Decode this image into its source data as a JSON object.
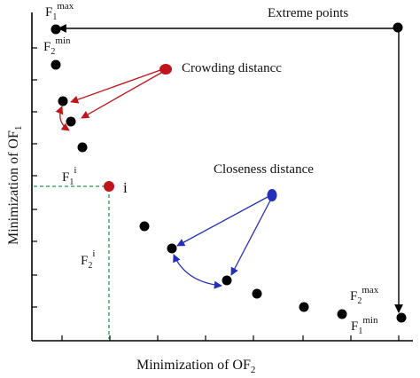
{
  "labels": {
    "f1_max": "F",
    "f1_max_sub": "1",
    "f1_max_sup": "max",
    "f2_min": "F",
    "f2_min_sub": "2",
    "f2_min_sup": "min",
    "f1_i": "F",
    "f1_i_sub": "1",
    "f1_i_sup": "i",
    "f2_i": "F",
    "f2_i_sub": "2",
    "f2_i_sup": "i",
    "i_label": "i",
    "f2_max": "F",
    "f2_max_sub": "2",
    "f2_max_sup": "max",
    "f1_min": "F",
    "f1_min_sub": "1",
    "f1_min_sup": "min",
    "extreme_points": "Extreme points",
    "crowding_distance": "Crowding distancc",
    "closeness_distance": "Closeness distance"
  },
  "axes": {
    "x_label": "Minimization of OF",
    "x_label_sub": "2",
    "y_label": "Minimization of OF",
    "y_label_sub": "1"
  },
  "colors": {
    "black": "#000000",
    "red_accent": "#c0161b",
    "blue_accent": "#2530b8",
    "guide_green": "#1f9a4a"
  }
}
